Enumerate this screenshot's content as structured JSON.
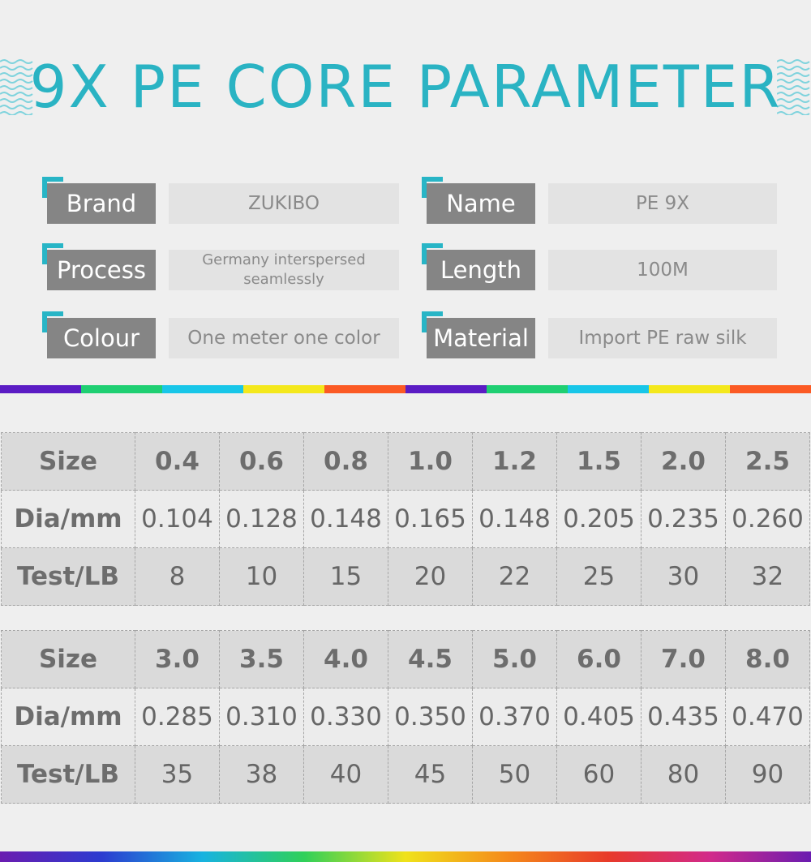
{
  "title": "9X PE CORE PARAMETER",
  "colors": {
    "accent": "#2ab3c3",
    "label_bg": "#858585",
    "value_bg": "#e3e3e3"
  },
  "specs": [
    {
      "label": "Brand",
      "value": "ZUKIBO"
    },
    {
      "label": "Name",
      "value": "PE 9X"
    },
    {
      "label": "Process",
      "value": "Germany interspersed seamlessly"
    },
    {
      "label": "Length",
      "value": "100M"
    },
    {
      "label": "Colour",
      "value": "One meter one color"
    },
    {
      "label": "Material",
      "value": "Import PE raw silk"
    }
  ],
  "rainbow_colors": [
    "#5b1cc4",
    "#1fcf72",
    "#18c6e8",
    "#f4e81c",
    "#fb5a24",
    "#5b1cc4",
    "#1fcf72",
    "#18c6e8",
    "#f4e81c",
    "#fb5a24"
  ],
  "tables": [
    {
      "rows": [
        {
          "head": "Size",
          "cells": [
            "0.4",
            "0.6",
            "0.8",
            "1.0",
            "1.2",
            "1.5",
            "2.0",
            "2.5"
          ]
        },
        {
          "head": "Dia/mm",
          "cells": [
            "0.104",
            "0.128",
            "0.148",
            "0.165",
            "0.148",
            "0.205",
            "0.235",
            "0.260"
          ]
        },
        {
          "head": "Test/LB",
          "cells": [
            "8",
            "10",
            "15",
            "20",
            "22",
            "25",
            "30",
            "32"
          ]
        }
      ]
    },
    {
      "rows": [
        {
          "head": "Size",
          "cells": [
            "3.0",
            "3.5",
            "4.0",
            "4.5",
            "5.0",
            "6.0",
            "7.0",
            "8.0"
          ]
        },
        {
          "head": "Dia/mm",
          "cells": [
            "0.285",
            "0.310",
            "0.330",
            "0.350",
            "0.370",
            "0.405",
            "0.435",
            "0.470"
          ]
        },
        {
          "head": "Test/LB",
          "cells": [
            "35",
            "38",
            "40",
            "45",
            "50",
            "60",
            "80",
            "90"
          ]
        }
      ]
    }
  ]
}
